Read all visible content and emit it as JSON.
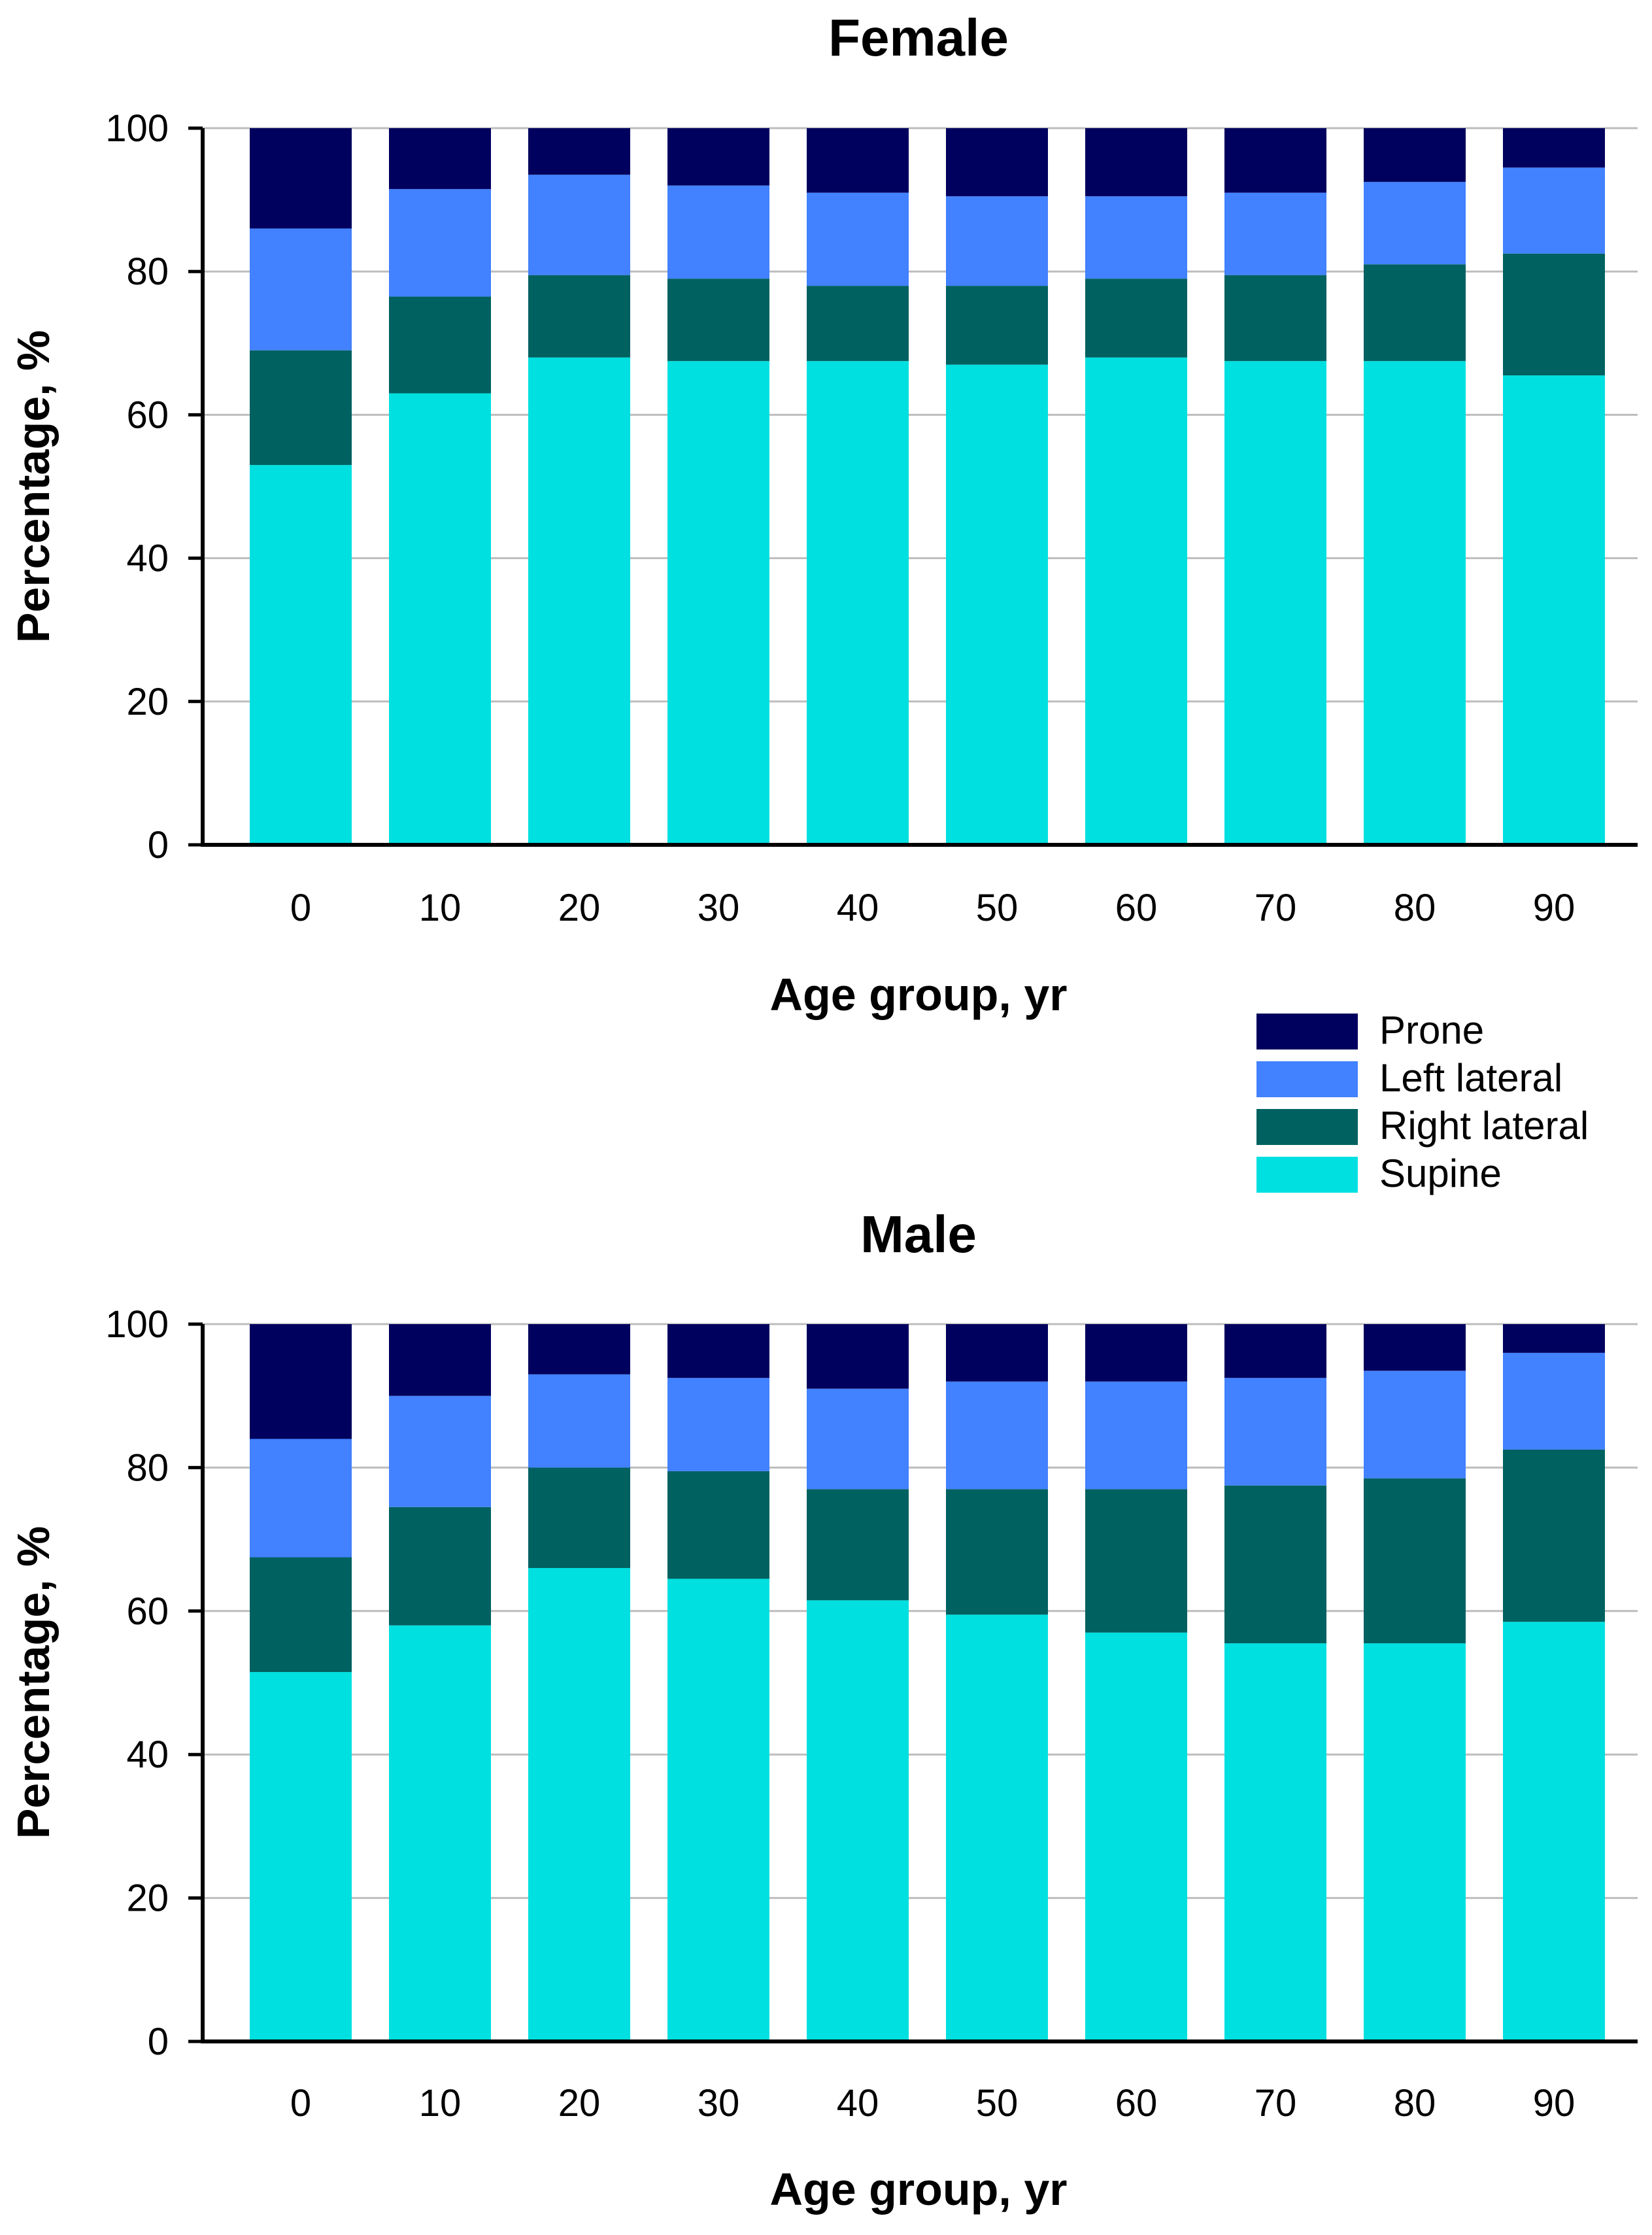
{
  "chart_data": [
    {
      "type": "bar",
      "stacked": true,
      "title": "Female",
      "xlabel": "Age group, yr",
      "ylabel": "Percentage, %",
      "ylim": [
        0,
        100
      ],
      "yticks": [
        0,
        20,
        40,
        60,
        80,
        100
      ],
      "grid": true,
      "categories": [
        "0",
        "10",
        "20",
        "30",
        "40",
        "50",
        "60",
        "70",
        "80",
        "90"
      ],
      "series": [
        {
          "name": "Supine",
          "values": [
            53,
            63,
            68,
            67.5,
            67.5,
            67,
            68,
            67.5,
            67.5,
            65.5
          ]
        },
        {
          "name": "Right lateral",
          "values": [
            16,
            13.5,
            11.5,
            11.5,
            10.5,
            11,
            11,
            12,
            13.5,
            17
          ]
        },
        {
          "name": "Left lateral",
          "values": [
            17,
            15,
            14,
            13,
            13,
            12.5,
            11.5,
            11.5,
            11.5,
            12
          ]
        },
        {
          "name": "Prone",
          "values": [
            14,
            8.5,
            6.5,
            8,
            9,
            9.5,
            9.5,
            9,
            7.5,
            5.5
          ]
        }
      ]
    },
    {
      "type": "bar",
      "stacked": true,
      "title": "Male",
      "xlabel": "Age group, yr",
      "ylabel": "Percentage, %",
      "ylim": [
        0,
        100
      ],
      "yticks": [
        0,
        20,
        40,
        60,
        80,
        100
      ],
      "grid": true,
      "categories": [
        "0",
        "10",
        "20",
        "30",
        "40",
        "50",
        "60",
        "70",
        "80",
        "90"
      ],
      "series": [
        {
          "name": "Supine",
          "values": [
            51.5,
            58,
            66,
            64.5,
            61.5,
            59.5,
            57,
            55.5,
            55.5,
            58.5
          ]
        },
        {
          "name": "Right lateral",
          "values": [
            16,
            16.5,
            14,
            15,
            15.5,
            17.5,
            20,
            22,
            23,
            24
          ]
        },
        {
          "name": "Left lateral",
          "values": [
            16.5,
            15.5,
            13,
            13,
            14,
            15,
            15,
            15,
            15,
            13.5
          ]
        },
        {
          "name": "Prone",
          "values": [
            16,
            10,
            7,
            7.5,
            9,
            8,
            8,
            7.5,
            6.5,
            4
          ]
        }
      ]
    }
  ],
  "legend": {
    "position": "between-panels-right",
    "items": [
      {
        "label": "Prone",
        "color": "#00005e"
      },
      {
        "label": "Left lateral",
        "color": "#4281ff"
      },
      {
        "label": "Right lateral",
        "color": "#006161"
      },
      {
        "label": "Supine",
        "color": "#00e0e0"
      }
    ]
  },
  "colors": {
    "Supine": "#00e0e0",
    "Right lateral": "#006161",
    "Left lateral": "#4281ff",
    "Prone": "#00005e"
  }
}
